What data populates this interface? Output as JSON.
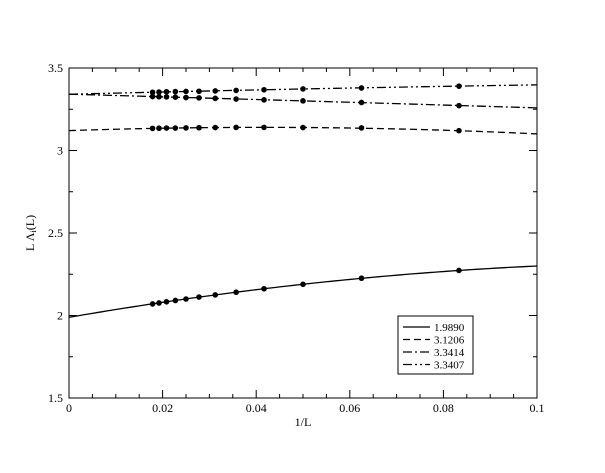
{
  "chart_data": {
    "type": "line",
    "title": "",
    "xlabel": "1/L",
    "ylabel_main": "L Λ",
    "ylabel_sub": "i",
    "ylabel_tail": "(L)",
    "xlim": [
      0,
      0.1
    ],
    "ylim": [
      1.5,
      3.5
    ],
    "x_ticks": [
      0,
      0.02,
      0.04,
      0.06,
      0.08,
      0.1
    ],
    "x_tick_labels": [
      "0",
      "0.02",
      "0.04",
      "0.06",
      "0.08",
      "0.1"
    ],
    "y_ticks": [
      1.5,
      2,
      2.5,
      3,
      3.5
    ],
    "y_tick_labels": [
      "1.5",
      "2",
      "2.5",
      "3",
      "3.5"
    ],
    "grid": false,
    "legend_position": "bottom-right",
    "points_x": [
      0.01786,
      0.01923,
      0.02083,
      0.02273,
      0.025,
      0.02778,
      0.03125,
      0.03571,
      0.04167,
      0.05,
      0.0625,
      0.08333
    ],
    "series": [
      {
        "name": "1.9890",
        "style": "solid",
        "fit": [
          1.989,
          4.9,
          -17.9
        ],
        "values": [
          2.07,
          2.076,
          2.083,
          2.091,
          2.1,
          2.112,
          2.125,
          2.141,
          2.162,
          2.189,
          2.226,
          2.273
        ]
      },
      {
        "name": "3.1206",
        "style": "dashed",
        "fit": [
          3.1206,
          0.95,
          -11.5
        ],
        "values": [
          3.134,
          3.135,
          3.136,
          3.136,
          3.137,
          3.138,
          3.139,
          3.14,
          3.14,
          3.139,
          3.137,
          3.12
        ]
      },
      {
        "name": "3.3414",
        "style": "dashdot",
        "fit": [
          3.3414,
          -0.8,
          -0.3
        ],
        "values": [
          3.327,
          3.326,
          3.325,
          3.323,
          3.321,
          3.319,
          3.316,
          3.312,
          3.307,
          3.301,
          3.291,
          3.272
        ]
      },
      {
        "name": "3.3407",
        "style": "dashdotdot",
        "fit": [
          3.3407,
          0.72,
          -1.5
        ],
        "values": [
          3.353,
          3.354,
          3.356,
          3.357,
          3.358,
          3.359,
          3.361,
          3.364,
          3.368,
          3.373,
          3.379,
          3.39
        ]
      }
    ]
  }
}
